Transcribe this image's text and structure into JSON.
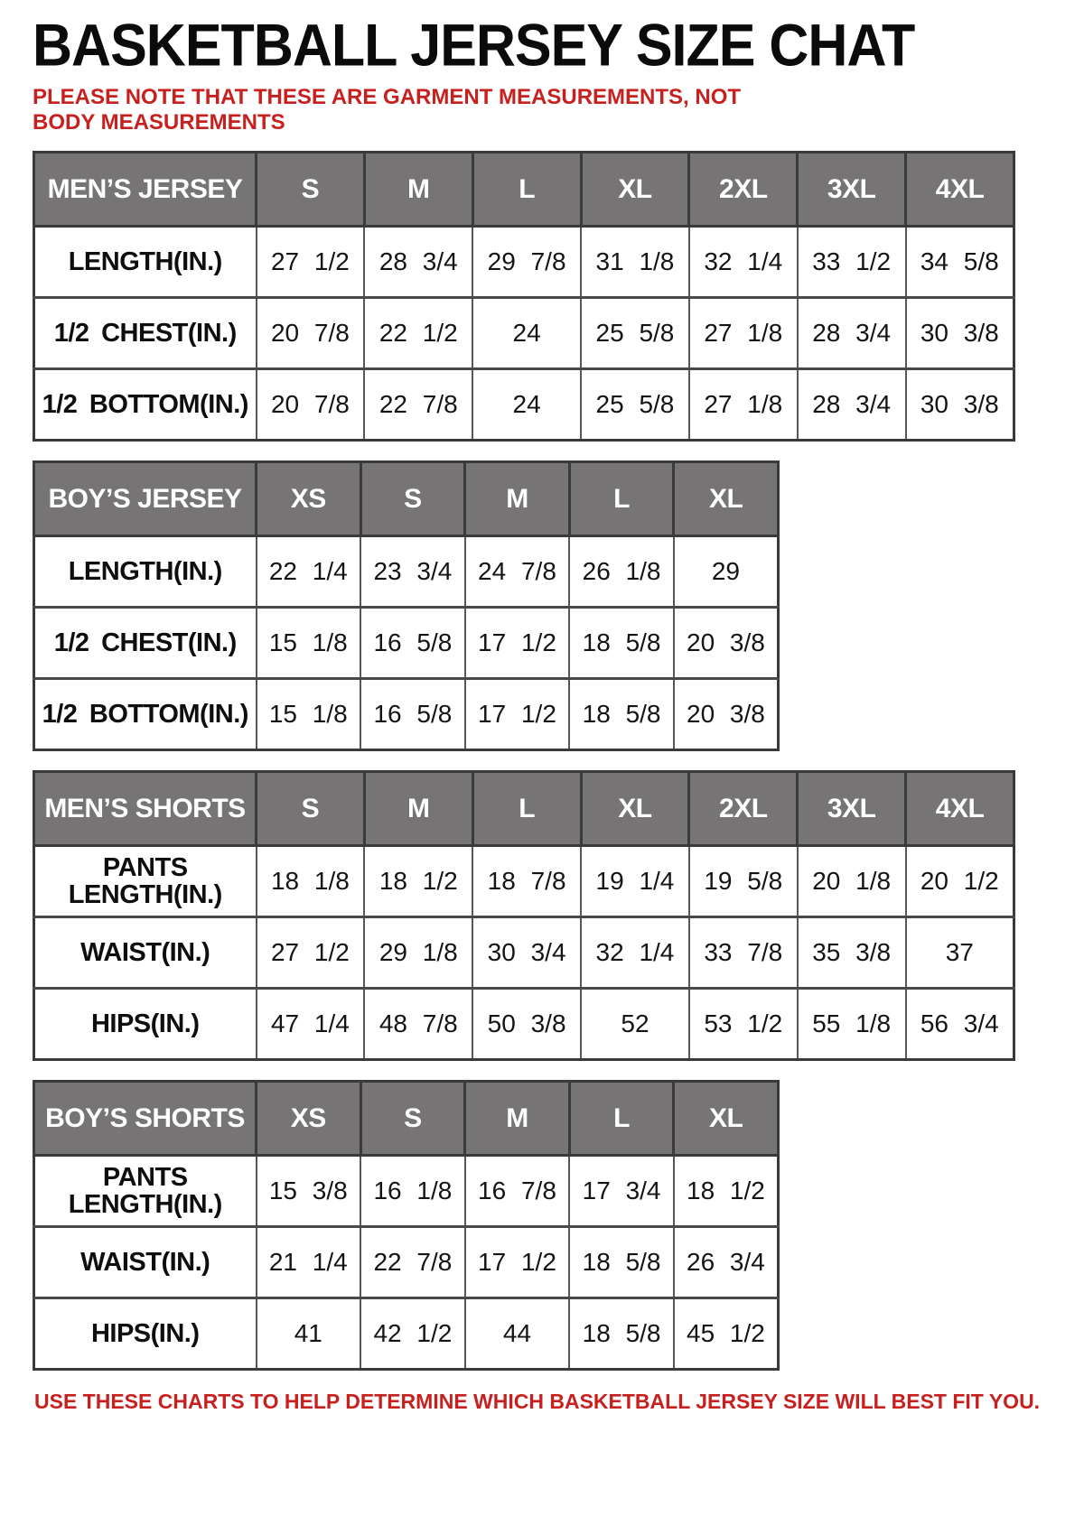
{
  "page": {
    "title": "BASKETBALL JERSEY SIZE CHAT",
    "note_top": "PLEASE NOTE THAT THESE ARE GARMENT MEASUREMENTS, NOT BODY MEASUREMENTS",
    "note_bottom": "USE THESE CHARTS TO HELP DETERMINE WHICH BASKETBALL JERSEY SIZE WILL BEST FIT YOU."
  },
  "colors": {
    "header_bg": "#767474",
    "header_text": "#ffffff",
    "note_red": "#c8201f",
    "border_dark": "#3a3a3a",
    "border_mid": "#575757"
  },
  "tables": [
    {
      "id": "mens-jersey",
      "header": [
        "MEN’S JERSEY",
        "S",
        "M",
        "L",
        "XL",
        "2XL",
        "3XL",
        "4XL"
      ],
      "rows": [
        [
          "LENGTH(IN.)",
          "27 1/2",
          "28 3/4",
          "29 7/8",
          "31 1/8",
          "32 1/4",
          "33 1/2",
          "34 5/8"
        ],
        [
          "1/2 CHEST(IN.)",
          "20 7/8",
          "22 1/2",
          "24",
          "25 5/8",
          "27 1/8",
          "28 3/4",
          "30 3/8"
        ],
        [
          "1/2 BOTTOM(IN.)",
          "20 7/8",
          "22 7/8",
          "24",
          "25 5/8",
          "27 1/8",
          "28 3/4",
          "30 3/8"
        ]
      ]
    },
    {
      "id": "boys-jersey",
      "header": [
        "BOY’S JERSEY",
        "XS",
        "S",
        "M",
        "L",
        "XL"
      ],
      "rows": [
        [
          "LENGTH(IN.)",
          "22 1/4",
          "23 3/4",
          "24 7/8",
          "26 1/8",
          "29"
        ],
        [
          "1/2 CHEST(IN.)",
          "15 1/8",
          "16 5/8",
          "17 1/2",
          "18 5/8",
          "20 3/8"
        ],
        [
          "1/2 BOTTOM(IN.)",
          "15 1/8",
          "16 5/8",
          "17 1/2",
          "18 5/8",
          "20 3/8"
        ]
      ]
    },
    {
      "id": "mens-shorts",
      "header": [
        "MEN’S SHORTS",
        "S",
        "M",
        "L",
        "XL",
        "2XL",
        "3XL",
        "4XL"
      ],
      "rows": [
        [
          "PANTS LENGTH(IN.)",
          "18 1/8",
          "18 1/2",
          "18 7/8",
          "19 1/4",
          "19 5/8",
          "20 1/8",
          "20 1/2"
        ],
        [
          "WAIST(IN.)",
          "27 1/2",
          "29 1/8",
          "30 3/4",
          "32 1/4",
          "33 7/8",
          "35 3/8",
          "37"
        ],
        [
          "HIPS(IN.)",
          "47 1/4",
          "48 7/8",
          "50 3/8",
          "52",
          "53 1/2",
          "55 1/8",
          "56 3/4"
        ]
      ]
    },
    {
      "id": "boys-shorts",
      "header": [
        "BOY’S SHORTS",
        "XS",
        "S",
        "M",
        "L",
        "XL"
      ],
      "rows": [
        [
          "PANTS LENGTH(IN.)",
          "15 3/8",
          "16 1/8",
          "16 7/8",
          "17 3/4",
          "18 1/2"
        ],
        [
          "WAIST(IN.)",
          "21 1/4",
          "22 7/8",
          "17 1/2",
          "18 5/8",
          "26 3/4"
        ],
        [
          "HIPS(IN.)",
          "41",
          "42 1/2",
          "44",
          "18 5/8",
          "45 1/2"
        ]
      ]
    }
  ]
}
